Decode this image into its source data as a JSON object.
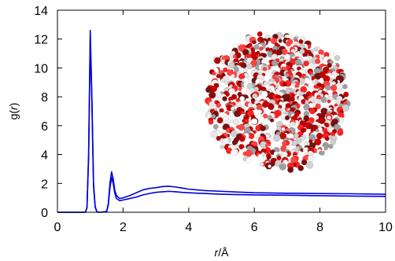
{
  "chart_data": {
    "type": "line",
    "title": "",
    "xlabel_var": "r",
    "xlabel_unit": "/Å",
    "ylabel_var": "g(",
    "ylabel_arg": "r",
    "ylabel_close": ")",
    "xlim": [
      0,
      10
    ],
    "ylim": [
      0,
      14
    ],
    "xticks": [
      0,
      2,
      4,
      6,
      8,
      10
    ],
    "yticks": [
      0,
      2,
      4,
      6,
      8,
      10,
      12,
      14
    ],
    "grid": false,
    "legend": "none",
    "line_color": "#0000dd",
    "series": [
      {
        "x": [
          0.0,
          0.85,
          0.9,
          0.95,
          1.0,
          1.05,
          1.1,
          1.15,
          1.2,
          1.25,
          1.3,
          1.5,
          1.55,
          1.6,
          1.65,
          1.7,
          1.75,
          1.8,
          1.9,
          2.0,
          2.2,
          2.4,
          2.6,
          2.8,
          3.0,
          3.2,
          3.4,
          3.6,
          3.8,
          4.0,
          4.5,
          5.0,
          5.5,
          6.0,
          7.0,
          8.0,
          9.0,
          10.0
        ],
        "values": [
          0.0,
          0.0,
          0.3,
          4.0,
          12.6,
          8.0,
          2.0,
          0.4,
          0.05,
          0.0,
          0.0,
          0.05,
          0.6,
          2.0,
          2.8,
          2.3,
          1.5,
          1.15,
          0.95,
          1.0,
          1.15,
          1.35,
          1.55,
          1.65,
          1.7,
          1.78,
          1.8,
          1.75,
          1.68,
          1.6,
          1.5,
          1.45,
          1.4,
          1.35,
          1.32,
          1.3,
          1.28,
          1.25
        ]
      },
      {
        "x": [
          0.0,
          0.85,
          0.9,
          0.95,
          1.0,
          1.05,
          1.1,
          1.15,
          1.2,
          1.25,
          1.3,
          1.5,
          1.55,
          1.6,
          1.65,
          1.7,
          1.75,
          1.8,
          1.9,
          2.0,
          2.2,
          2.4,
          2.6,
          2.8,
          3.0,
          3.2,
          3.4,
          3.6,
          3.8,
          4.0,
          4.5,
          5.0,
          5.5,
          6.0,
          7.0,
          8.0,
          9.0,
          10.0
        ],
        "values": [
          0.0,
          0.0,
          0.3,
          3.8,
          12.0,
          7.6,
          1.8,
          0.35,
          0.05,
          0.0,
          0.0,
          0.05,
          0.5,
          1.7,
          2.4,
          2.0,
          1.3,
          0.95,
          0.8,
          0.85,
          0.95,
          1.05,
          1.2,
          1.3,
          1.38,
          1.42,
          1.45,
          1.42,
          1.38,
          1.35,
          1.3,
          1.25,
          1.22,
          1.2,
          1.18,
          1.15,
          1.12,
          1.1
        ]
      }
    ]
  },
  "inset": {
    "atom_colors": [
      "#cc0000",
      "#e8e8e8",
      "#b00000",
      "#d0d0d0",
      "#ff2222",
      "#f4f4f4",
      "#7a1010",
      "#a0a0a0",
      "#ff4444",
      "#ffffff"
    ]
  }
}
